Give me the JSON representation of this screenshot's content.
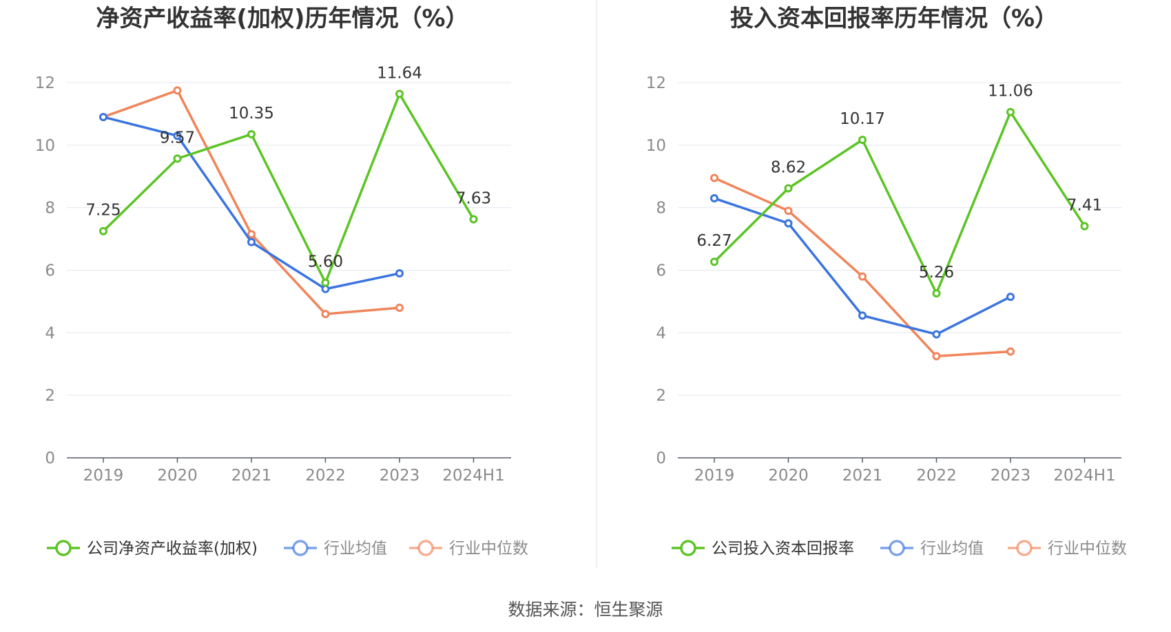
{
  "source": "数据来源：恒生聚源",
  "colors": {
    "company": "#5bc424",
    "industry_avg": "#3a74e0",
    "industry_median": "#f0845a"
  },
  "chart_data": [
    {
      "type": "line",
      "title": "净资产收益率(加权)历年情况（%）",
      "categories": [
        "2019",
        "2020",
        "2021",
        "2022",
        "2023",
        "2024H1"
      ],
      "ylim": [
        0,
        12
      ],
      "yticks": [
        "0",
        "2",
        "4",
        "6",
        "8",
        "10",
        "12"
      ],
      "grid": true,
      "legend_position": "bottom",
      "series": [
        {
          "name": "公司净资产收益率(加权)",
          "key": "company",
          "values": [
            7.25,
            9.57,
            10.35,
            5.6,
            11.64,
            7.63
          ],
          "labels": [
            "7.25",
            "9.57",
            "10.35",
            "5.60",
            "11.64",
            "7.63"
          ]
        },
        {
          "name": "行业均值",
          "key": "industry_avg",
          "values": [
            10.9,
            10.3,
            6.9,
            5.4,
            5.9,
            null
          ]
        },
        {
          "name": "行业中位数",
          "key": "industry_median",
          "values": [
            10.9,
            11.75,
            7.15,
            4.6,
            4.8,
            null
          ]
        }
      ]
    },
    {
      "type": "line",
      "title": "投入资本回报率历年情况（%）",
      "categories": [
        "2019",
        "2020",
        "2021",
        "2022",
        "2023",
        "2024H1"
      ],
      "ylim": [
        0,
        12
      ],
      "yticks": [
        "0",
        "2",
        "4",
        "6",
        "8",
        "10",
        "12"
      ],
      "grid": true,
      "legend_position": "bottom",
      "series": [
        {
          "name": "公司投入资本回报率",
          "key": "company",
          "values": [
            6.27,
            8.62,
            10.17,
            5.26,
            11.06,
            7.41
          ],
          "labels": [
            "6.27",
            "8.62",
            "10.17",
            "5.26",
            "11.06",
            "7.41"
          ]
        },
        {
          "name": "行业均值",
          "key": "industry_avg",
          "values": [
            8.3,
            7.5,
            4.55,
            3.95,
            5.15,
            null
          ]
        },
        {
          "name": "行业中位数",
          "key": "industry_median",
          "values": [
            8.95,
            7.9,
            5.8,
            3.25,
            3.4,
            null
          ]
        }
      ]
    }
  ]
}
